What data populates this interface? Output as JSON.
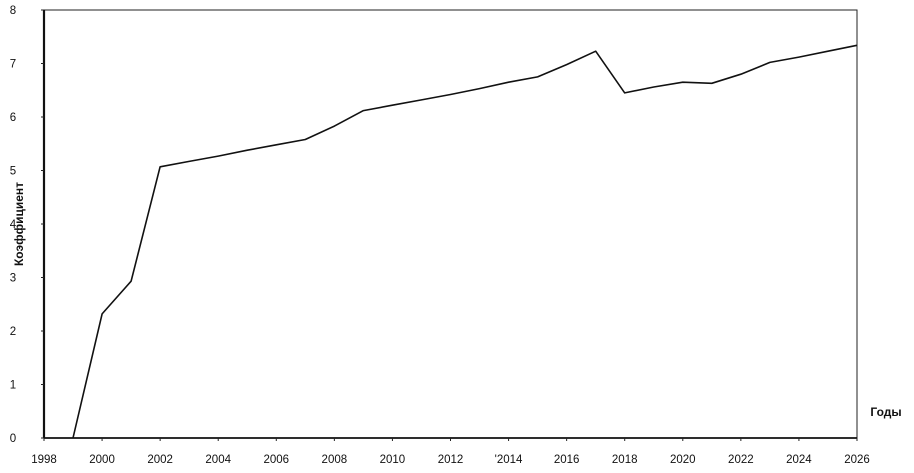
{
  "chart_data": {
    "type": "line",
    "title": "",
    "xlabel": "Годы",
    "ylabel": "Коэффициент",
    "xlim": [
      1998,
      2026
    ],
    "ylim": [
      0,
      8
    ],
    "grid": false,
    "legend": "none",
    "x_ticks": [
      1998,
      2000,
      2002,
      2004,
      2006,
      2008,
      2010,
      2012,
      2014,
      2016,
      2018,
      2020,
      2022,
      2024,
      2026
    ],
    "x_tick_labels": [
      "1998",
      "2000",
      "2002",
      "2004",
      "2006",
      "2008",
      "2010",
      "2012",
      "'2014",
      "2016",
      "2018",
      "2020",
      "2022",
      "2024",
      "2026"
    ],
    "y_ticks": [
      0,
      1,
      2,
      3,
      4,
      5,
      6,
      7,
      8
    ],
    "y_tick_labels": [
      "0",
      "1",
      "2",
      "3",
      "4",
      "5",
      "6",
      "7",
      "8"
    ],
    "line_color": "#111111",
    "series": [
      {
        "x": [
          1999,
          2000,
          2001,
          2002,
          2003,
          2004,
          2005,
          2006,
          2007,
          2008,
          2009,
          2010,
          2011,
          2012,
          2013,
          2014,
          2015,
          2016,
          2017,
          2018,
          2019,
          2020,
          2021,
          2022,
          2023,
          2024,
          2025,
          2026
        ],
        "values": [
          0,
          2.32,
          2.93,
          5.07,
          5.17,
          5.27,
          5.38,
          5.48,
          5.58,
          5.83,
          6.12,
          6.22,
          6.32,
          6.42,
          6.53,
          6.65,
          6.75,
          6.98,
          7.23,
          6.45,
          6.56,
          6.65,
          6.63,
          6.8,
          7.02,
          7.12,
          7.23,
          7.34
        ]
      }
    ]
  }
}
